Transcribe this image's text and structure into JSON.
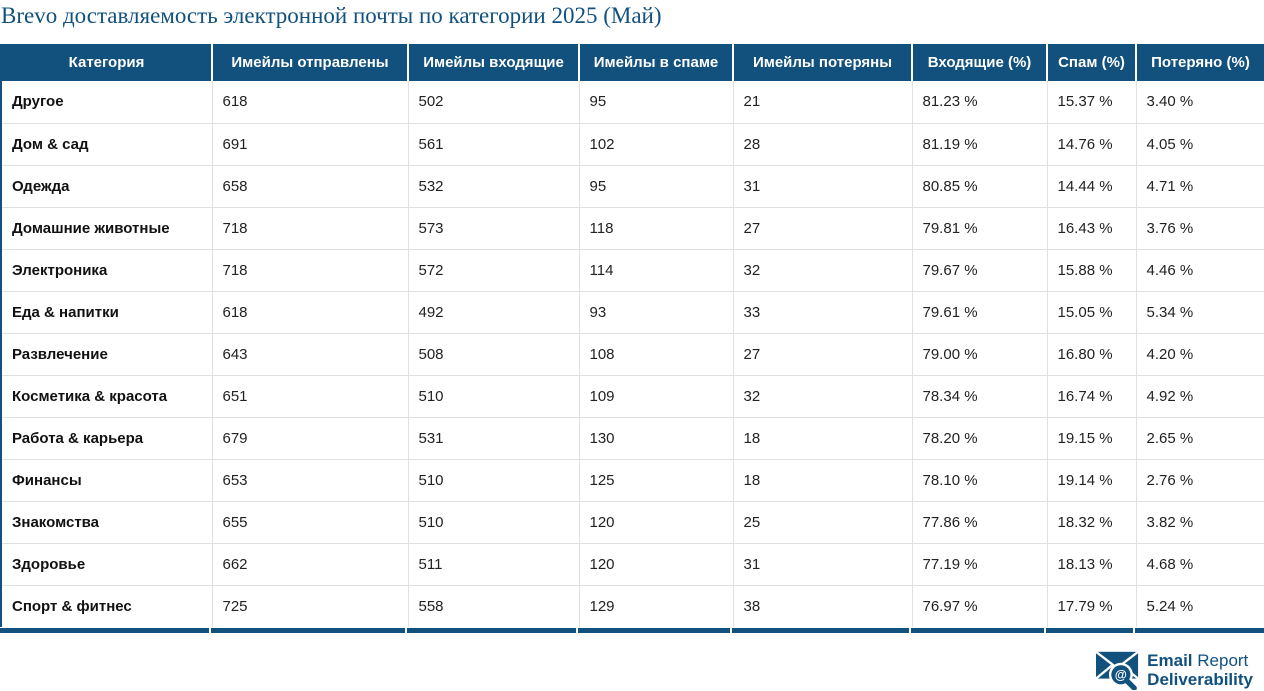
{
  "chart_data": {
    "type": "table",
    "title": "Brevo доставляемость электронной почты по категории 2025 (Май)",
    "columns": [
      "Категория",
      "Имейлы отправлены",
      "Имейлы входящие",
      "Имейлы в спаме",
      "Имейлы потеряны",
      "Входящие (%)",
      "Спам (%)",
      "Потеряно (%)"
    ],
    "rows": [
      [
        "Другое",
        "618",
        "502",
        "95",
        "21",
        "81.23 %",
        "15.37 %",
        "3.40 %"
      ],
      [
        "Дом & сад",
        "691",
        "561",
        "102",
        "28",
        "81.19 %",
        "14.76 %",
        "4.05 %"
      ],
      [
        "Одежда",
        "658",
        "532",
        "95",
        "31",
        "80.85 %",
        "14.44 %",
        "4.71 %"
      ],
      [
        "Домашние животные",
        "718",
        "573",
        "118",
        "27",
        "79.81 %",
        "16.43 %",
        "3.76 %"
      ],
      [
        "Электроника",
        "718",
        "572",
        "114",
        "32",
        "79.67 %",
        "15.88 %",
        "4.46 %"
      ],
      [
        "Еда & напитки",
        "618",
        "492",
        "93",
        "33",
        "79.61 %",
        "15.05 %",
        "5.34 %"
      ],
      [
        "Развлечение",
        "643",
        "508",
        "108",
        "27",
        "79.00 %",
        "16.80 %",
        "4.20 %"
      ],
      [
        "Косметика & красота",
        "651",
        "510",
        "109",
        "32",
        "78.34 %",
        "16.74 %",
        "4.92 %"
      ],
      [
        "Работа & карьера",
        "679",
        "531",
        "130",
        "18",
        "78.20 %",
        "19.15 %",
        "2.65 %"
      ],
      [
        "Финансы",
        "653",
        "510",
        "125",
        "18",
        "78.10 %",
        "19.14 %",
        "2.76 %"
      ],
      [
        "Знакомства",
        "655",
        "510",
        "120",
        "25",
        "77.86 %",
        "18.32 %",
        "3.82 %"
      ],
      [
        "Здоровье",
        "662",
        "511",
        "120",
        "31",
        "77.19 %",
        "18.13 %",
        "4.68 %"
      ],
      [
        "Спорт & фитнес",
        "725",
        "558",
        "129",
        "38",
        "76.97 %",
        "17.79 %",
        "5.24 %"
      ]
    ],
    "layout_hints": {
      "header_background": "#12517E",
      "header_text_color": "#FFFFFF",
      "row_background": "#FFFFFF",
      "grid": "light-gray-inner-borders",
      "outer_border": "#12517E"
    }
  },
  "logo": {
    "line1_bold": "Email",
    "line1_regular": " Report",
    "line2": "Deliverability",
    "lens_symbol": "@"
  },
  "colors": {
    "brand_blue": "#12517E",
    "row_border": "#E0E0E0",
    "body_text": "#222222"
  }
}
